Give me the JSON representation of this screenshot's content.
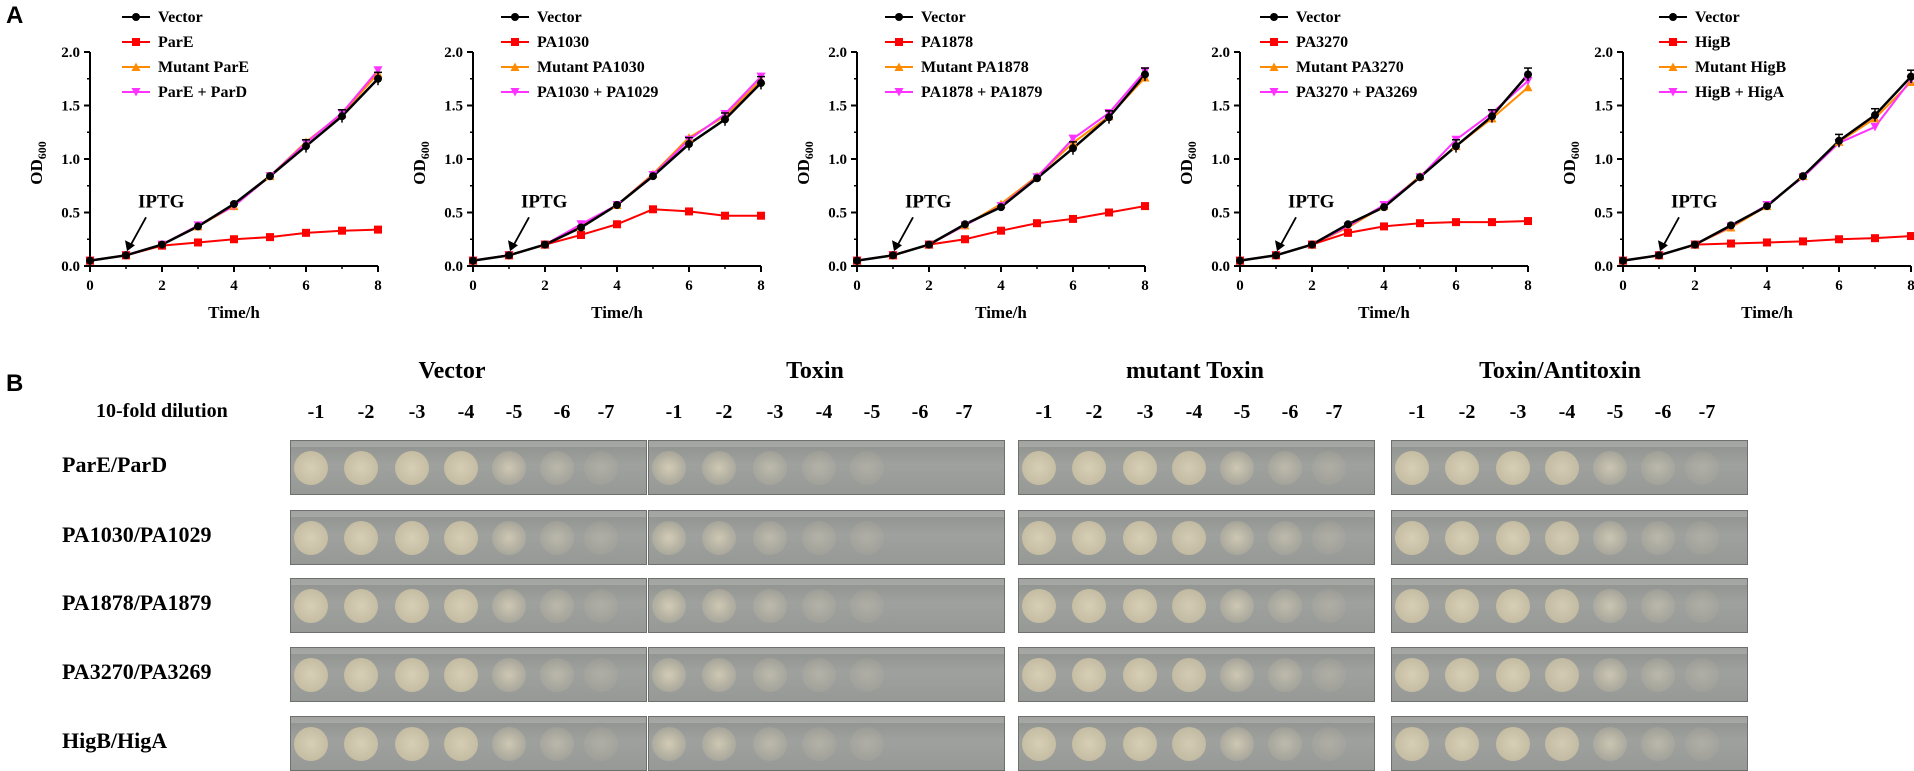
{
  "panel_labels": {
    "a": "A",
    "b": "B"
  },
  "colors": {
    "vector": "#000000",
    "toxin": "#ff0000",
    "mutant": "#ff8c00",
    "toxin_antitoxin": "#ff33ff"
  },
  "chart_data": [
    {
      "type": "line",
      "xlabel": "Time/h",
      "ylabel_main": "OD",
      "ylabel_sub": "600",
      "xlim": [
        0,
        8
      ],
      "ylim": [
        0,
        2.0
      ],
      "xticks": [
        0,
        2,
        4,
        6,
        8
      ],
      "yticks": [
        "0.0",
        "0.5",
        "1.0",
        "1.5",
        "2.0"
      ],
      "annotation": "IPTG",
      "x": [
        0,
        1,
        2,
        3,
        4,
        5,
        6,
        7,
        8
      ],
      "series": [
        {
          "name": "Vector",
          "values": [
            0.05,
            0.1,
            0.2,
            0.37,
            0.58,
            0.84,
            1.12,
            1.4,
            1.75
          ]
        },
        {
          "name": "ParE",
          "values": [
            0.05,
            0.1,
            0.19,
            0.22,
            0.25,
            0.27,
            0.31,
            0.33,
            0.34
          ]
        },
        {
          "name": "Mutant ParE",
          "values": [
            0.05,
            0.1,
            0.2,
            0.37,
            0.56,
            0.84,
            1.16,
            1.42,
            1.8
          ]
        },
        {
          "name": "ParE + ParD",
          "values": [
            0.05,
            0.1,
            0.2,
            0.38,
            0.56,
            0.84,
            1.15,
            1.43,
            1.83
          ]
        }
      ]
    },
    {
      "type": "line",
      "xlabel": "Time/h",
      "ylabel_main": "OD",
      "ylabel_sub": "600",
      "xlim": [
        0,
        8
      ],
      "ylim": [
        0,
        2.0
      ],
      "xticks": [
        0,
        2,
        4,
        6,
        8
      ],
      "yticks": [
        "0.0",
        "0.5",
        "1.0",
        "1.5",
        "2.0"
      ],
      "annotation": "IPTG",
      "x": [
        0,
        1,
        2,
        3,
        4,
        5,
        6,
        7,
        8
      ],
      "series": [
        {
          "name": "Vector",
          "values": [
            0.05,
            0.1,
            0.2,
            0.36,
            0.57,
            0.84,
            1.14,
            1.37,
            1.71
          ]
        },
        {
          "name": "PA1030",
          "values": [
            0.05,
            0.1,
            0.2,
            0.29,
            0.39,
            0.53,
            0.51,
            0.47,
            0.47
          ]
        },
        {
          "name": "Mutant PA1030",
          "values": [
            0.05,
            0.1,
            0.2,
            0.37,
            0.57,
            0.86,
            1.2,
            1.4,
            1.74
          ]
        },
        {
          "name": "PA1030 + PA1029",
          "values": [
            0.05,
            0.1,
            0.2,
            0.39,
            0.57,
            0.85,
            1.18,
            1.42,
            1.77
          ]
        }
      ]
    },
    {
      "type": "line",
      "xlabel": "Time/h",
      "ylabel_main": "OD",
      "ylabel_sub": "600",
      "xlim": [
        0,
        8
      ],
      "ylim": [
        0,
        2.0
      ],
      "xticks": [
        0,
        2,
        4,
        6,
        8
      ],
      "yticks": [
        "0.0",
        "0.5",
        "1.0",
        "1.5",
        "2.0"
      ],
      "annotation": "IPTG",
      "x": [
        0,
        1,
        2,
        3,
        4,
        5,
        6,
        7,
        8
      ],
      "series": [
        {
          "name": "Vector",
          "values": [
            0.05,
            0.1,
            0.2,
            0.39,
            0.55,
            0.82,
            1.1,
            1.39,
            1.79
          ]
        },
        {
          "name": "PA1878",
          "values": [
            0.05,
            0.1,
            0.2,
            0.25,
            0.33,
            0.4,
            0.44,
            0.5,
            0.56
          ]
        },
        {
          "name": "Mutant PA1878",
          "values": [
            0.05,
            0.1,
            0.2,
            0.38,
            0.58,
            0.84,
            1.15,
            1.4,
            1.76
          ]
        },
        {
          "name": "PA1878 + PA1879",
          "values": [
            0.05,
            0.1,
            0.2,
            0.38,
            0.56,
            0.83,
            1.19,
            1.43,
            1.82
          ]
        }
      ]
    },
    {
      "type": "line",
      "xlabel": "Time/h",
      "ylabel_main": "OD",
      "ylabel_sub": "600",
      "xlim": [
        0,
        8
      ],
      "ylim": [
        0,
        2.0
      ],
      "xticks": [
        0,
        2,
        4,
        6,
        8
      ],
      "yticks": [
        "0.0",
        "0.5",
        "1.0",
        "1.5",
        "2.0"
      ],
      "annotation": "IPTG",
      "x": [
        0,
        1,
        2,
        3,
        4,
        5,
        6,
        7,
        8
      ],
      "series": [
        {
          "name": "Vector",
          "values": [
            0.05,
            0.1,
            0.2,
            0.39,
            0.55,
            0.83,
            1.12,
            1.4,
            1.79
          ]
        },
        {
          "name": "PA3270",
          "values": [
            0.05,
            0.1,
            0.2,
            0.31,
            0.37,
            0.4,
            0.41,
            0.41,
            0.42
          ]
        },
        {
          "name": "Mutant PA3270",
          "values": [
            0.05,
            0.1,
            0.2,
            0.36,
            0.56,
            0.84,
            1.12,
            1.38,
            1.67
          ]
        },
        {
          "name": "PA3270 + PA3269",
          "values": [
            0.05,
            0.1,
            0.2,
            0.37,
            0.57,
            0.83,
            1.18,
            1.43,
            1.73
          ]
        }
      ]
    },
    {
      "type": "line",
      "xlabel": "Time/h",
      "ylabel_main": "OD",
      "ylabel_sub": "600",
      "xlim": [
        0,
        8
      ],
      "ylim": [
        0,
        2.0
      ],
      "xticks": [
        0,
        2,
        4,
        6,
        8
      ],
      "yticks": [
        "0.0",
        "0.5",
        "1.0",
        "1.5",
        "2.0"
      ],
      "annotation": "IPTG",
      "x": [
        0,
        1,
        2,
        3,
        4,
        5,
        6,
        7,
        8
      ],
      "series": [
        {
          "name": "Vector",
          "values": [
            0.05,
            0.1,
            0.2,
            0.38,
            0.56,
            0.84,
            1.17,
            1.41,
            1.77
          ]
        },
        {
          "name": "HigB",
          "values": [
            0.05,
            0.1,
            0.2,
            0.21,
            0.22,
            0.23,
            0.25,
            0.26,
            0.28
          ]
        },
        {
          "name": "Mutant HigB",
          "values": [
            0.05,
            0.1,
            0.2,
            0.36,
            0.56,
            0.84,
            1.16,
            1.38,
            1.72
          ]
        },
        {
          "name": "HigB + HigA",
          "values": [
            0.05,
            0.1,
            0.2,
            0.37,
            0.57,
            0.83,
            1.15,
            1.3,
            1.74
          ]
        }
      ]
    }
  ],
  "spot_assay": {
    "dilution_label": "10-fold dilution",
    "dilutions": [
      "-1",
      "-2",
      "-3",
      "-4",
      "-5",
      "-6",
      "-7"
    ],
    "columns": [
      "Vector",
      "Toxin",
      "mutant Toxin",
      "Toxin/Antitoxin"
    ],
    "rows": [
      "ParE/ParD",
      "PA1030/PA1029",
      "PA1878/PA1879",
      "PA3270/PA3269",
      "HigB/HigA"
    ]
  }
}
